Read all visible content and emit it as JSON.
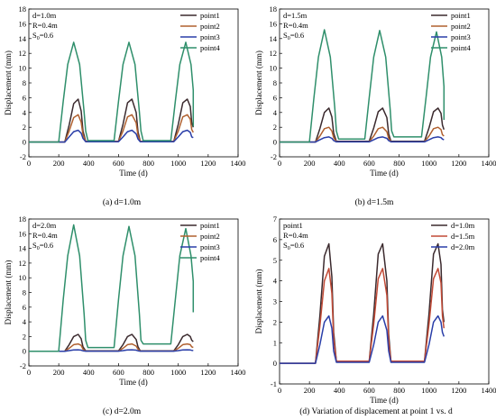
{
  "colors": {
    "point1": "#3b2a2e",
    "point2": "#b0602f",
    "point3": "#2a3ea8",
    "point4": "#2f8f6b",
    "d10": "#3b2a2e",
    "d15": "#c24a36",
    "d20": "#2a3ea8"
  },
  "chart_data": [
    {
      "type": "line",
      "caption": "(a) d=1.0m",
      "xlabel": "Time (d)",
      "ylabel": "Displacement (mm)",
      "xlim": [
        0,
        1400
      ],
      "ylim": [
        -2,
        18
      ],
      "xticks": [
        0,
        200,
        400,
        600,
        800,
        1000,
        1200,
        1400
      ],
      "yticks": [
        -2,
        0,
        2,
        4,
        6,
        8,
        10,
        12,
        14,
        16,
        18
      ],
      "params": [
        "d=1.0m",
        "R=0.4m",
        "S0=0.6"
      ],
      "legend_position": "top-right",
      "series": [
        {
          "name": "point1",
          "x": [
            0,
            240,
            270,
            300,
            330,
            350,
            362,
            380,
            600,
            630,
            660,
            690,
            718,
            730,
            745,
            970,
            1000,
            1030,
            1060,
            1080,
            1090,
            1100
          ],
          "y": [
            0,
            0,
            2.3,
            5.2,
            5.8,
            4.2,
            1.5,
            0.1,
            0.1,
            2.4,
            5.3,
            5.8,
            4.0,
            1.4,
            0.1,
            0.1,
            2.4,
            5.3,
            5.8,
            4.8,
            2.6,
            2.0
          ]
        },
        {
          "name": "point2",
          "x": [
            0,
            240,
            270,
            300,
            330,
            350,
            362,
            380,
            600,
            630,
            660,
            690,
            718,
            730,
            745,
            970,
            1000,
            1030,
            1060,
            1080,
            1090,
            1100
          ],
          "y": [
            0,
            0,
            1.5,
            3.3,
            3.7,
            2.7,
            1.0,
            0.1,
            0.1,
            1.5,
            3.4,
            3.7,
            2.6,
            0.9,
            0.1,
            0.1,
            1.5,
            3.4,
            3.7,
            3.1,
            1.7,
            1.3
          ]
        },
        {
          "name": "point3",
          "x": [
            0,
            240,
            270,
            300,
            330,
            350,
            362,
            380,
            600,
            630,
            660,
            690,
            718,
            730,
            745,
            970,
            1000,
            1030,
            1060,
            1080,
            1090,
            1100
          ],
          "y": [
            0,
            0,
            0.7,
            1.4,
            1.6,
            1.2,
            0.5,
            0.05,
            0.05,
            0.7,
            1.4,
            1.6,
            1.1,
            0.4,
            0.05,
            0.05,
            0.7,
            1.4,
            1.6,
            1.3,
            0.7,
            0.6
          ]
        },
        {
          "name": "point4",
          "x": [
            0,
            200,
            230,
            260,
            300,
            340,
            370,
            380,
            395,
            570,
            600,
            630,
            670,
            710,
            740,
            750,
            765,
            950,
            980,
            1010,
            1050,
            1085,
            1100,
            1100
          ],
          "y": [
            0,
            0,
            5.5,
            10.5,
            13.5,
            10.5,
            4.0,
            1.5,
            0.2,
            0.2,
            5.5,
            10.5,
            13.5,
            10.5,
            4.0,
            1.5,
            0.2,
            0.2,
            5.5,
            10.5,
            13.5,
            10.5,
            7.0,
            2.1
          ]
        }
      ]
    },
    {
      "type": "line",
      "caption": "(b) d=1.5m",
      "xlabel": "Time (d)",
      "ylabel": "Displacement (mm)",
      "xlim": [
        0,
        1400
      ],
      "ylim": [
        -2,
        18
      ],
      "xticks": [
        0,
        200,
        400,
        600,
        800,
        1000,
        1200,
        1400
      ],
      "yticks": [
        -2,
        0,
        2,
        4,
        6,
        8,
        10,
        12,
        14,
        16,
        18
      ],
      "params": [
        "d=1.5m",
        "R=0.4m",
        "S0=0.6"
      ],
      "legend_position": "top-right",
      "series": [
        {
          "name": "point1",
          "x": [
            0,
            240,
            270,
            300,
            330,
            350,
            362,
            380,
            600,
            630,
            660,
            690,
            718,
            730,
            745,
            970,
            1000,
            1030,
            1060,
            1080,
            1090,
            1100
          ],
          "y": [
            0,
            0,
            1.8,
            4.0,
            4.6,
            3.4,
            1.2,
            0.1,
            0.1,
            1.9,
            4.1,
            4.6,
            3.3,
            1.1,
            0.1,
            0.1,
            1.9,
            4.1,
            4.6,
            3.9,
            2.3,
            1.7
          ]
        },
        {
          "name": "point2",
          "x": [
            0,
            240,
            270,
            300,
            330,
            350,
            362,
            380,
            600,
            630,
            660,
            690,
            718,
            730,
            745,
            970,
            1000,
            1030,
            1060,
            1080,
            1090,
            1100
          ],
          "y": [
            0,
            0,
            0.8,
            1.8,
            2.0,
            1.5,
            0.6,
            0.05,
            0.05,
            0.8,
            1.8,
            2.0,
            1.4,
            0.5,
            0.05,
            0.05,
            0.8,
            1.8,
            2.0,
            1.7,
            1.0,
            0.8
          ]
        },
        {
          "name": "point3",
          "x": [
            0,
            240,
            270,
            300,
            330,
            350,
            362,
            380,
            600,
            630,
            660,
            690,
            718,
            730,
            745,
            970,
            1000,
            1030,
            1060,
            1080,
            1090,
            1100
          ],
          "y": [
            0,
            0,
            0.3,
            0.6,
            0.7,
            0.5,
            0.2,
            0.02,
            0.02,
            0.3,
            0.6,
            0.7,
            0.5,
            0.2,
            0.02,
            0.02,
            0.3,
            0.6,
            0.7,
            0.6,
            0.4,
            0.3
          ]
        },
        {
          "name": "point4",
          "x": [
            0,
            200,
            230,
            260,
            300,
            340,
            370,
            380,
            395,
            570,
            600,
            630,
            670,
            710,
            740,
            750,
            765,
            950,
            980,
            1010,
            1050,
            1085,
            1100,
            1100
          ],
          "y": [
            0,
            0,
            6.0,
            11.5,
            15.2,
            11.5,
            4.5,
            1.5,
            0.4,
            0.4,
            6.0,
            11.5,
            15.1,
            11.5,
            4.5,
            1.5,
            0.7,
            0.7,
            6.0,
            11.5,
            14.9,
            11.5,
            7.5,
            3.0
          ]
        }
      ]
    },
    {
      "type": "line",
      "caption": "(c) d=2.0m",
      "xlabel": "Time (d)",
      "ylabel": "Displacement (mm)",
      "xlim": [
        0,
        1400
      ],
      "ylim": [
        -2,
        18
      ],
      "xticks": [
        0,
        200,
        400,
        600,
        800,
        1000,
        1200,
        1400
      ],
      "yticks": [
        -2,
        0,
        2,
        4,
        6,
        8,
        10,
        12,
        14,
        16,
        18
      ],
      "params": [
        "d=2.0m",
        "R=0.4m",
        "S0=0.6"
      ],
      "legend_position": "top-right",
      "series": [
        {
          "name": "point1",
          "x": [
            0,
            240,
            270,
            300,
            330,
            350,
            362,
            380,
            600,
            630,
            660,
            690,
            718,
            730,
            745,
            970,
            1000,
            1030,
            1060,
            1080,
            1090,
            1100
          ],
          "y": [
            0,
            0,
            0.9,
            2.0,
            2.3,
            1.7,
            0.6,
            0.05,
            0.05,
            0.9,
            2.0,
            2.3,
            1.6,
            0.6,
            0.05,
            0.05,
            0.9,
            2.0,
            2.3,
            2.0,
            1.5,
            1.3
          ]
        },
        {
          "name": "point2",
          "x": [
            0,
            240,
            270,
            300,
            330,
            350,
            362,
            380,
            600,
            630,
            660,
            690,
            718,
            730,
            745,
            970,
            1000,
            1030,
            1060,
            1080,
            1090,
            1100
          ],
          "y": [
            0,
            0,
            0.4,
            0.9,
            1.0,
            0.8,
            0.3,
            0.02,
            0.02,
            0.4,
            0.9,
            1.0,
            0.7,
            0.3,
            0.02,
            0.02,
            0.4,
            0.9,
            1.0,
            0.9,
            0.6,
            0.5
          ]
        },
        {
          "name": "point3",
          "x": [
            0,
            240,
            270,
            300,
            330,
            350,
            362,
            380,
            600,
            630,
            660,
            690,
            718,
            730,
            745,
            970,
            1000,
            1030,
            1060,
            1080,
            1090,
            1100
          ],
          "y": [
            0,
            0,
            0.08,
            0.18,
            0.2,
            0.15,
            0.06,
            0.01,
            0.01,
            0.08,
            0.18,
            0.2,
            0.15,
            0.06,
            0.01,
            0.01,
            0.08,
            0.18,
            0.2,
            0.17,
            0.12,
            0.1
          ]
        },
        {
          "name": "point4",
          "x": [
            0,
            200,
            230,
            260,
            300,
            340,
            370,
            380,
            395,
            570,
            600,
            630,
            670,
            710,
            740,
            750,
            765,
            950,
            980,
            1010,
            1050,
            1085,
            1100,
            1100
          ],
          "y": [
            0,
            0,
            7.0,
            13.0,
            17.2,
            13.0,
            5.0,
            1.5,
            0.5,
            0.5,
            7.0,
            13.0,
            17.0,
            13.0,
            5.0,
            1.5,
            1.0,
            1.0,
            7.0,
            13.0,
            16.7,
            13.0,
            9.5,
            5.3
          ]
        }
      ]
    },
    {
      "type": "line",
      "caption": "(d) Variation of displacement at point 1 vs. d",
      "xlabel": "Time (d)",
      "ylabel": "Displacement (mm)",
      "xlim": [
        0,
        1400
      ],
      "ylim": [
        -1,
        7
      ],
      "xticks": [
        0,
        200,
        400,
        600,
        800,
        1000,
        1200,
        1400
      ],
      "yticks": [
        -1,
        0,
        1,
        2,
        3,
        4,
        5,
        6,
        7
      ],
      "params": [
        "point1",
        "R=0.4m",
        "S0=0.6"
      ],
      "legend_position": "top-right",
      "series": [
        {
          "name": "d=1.0m",
          "x": [
            0,
            240,
            270,
            300,
            330,
            350,
            362,
            380,
            600,
            630,
            660,
            690,
            718,
            730,
            745,
            970,
            1000,
            1030,
            1060,
            1080,
            1090,
            1100
          ],
          "y": [
            0,
            0,
            2.3,
            5.2,
            5.8,
            4.2,
            1.5,
            0.1,
            0.1,
            2.4,
            5.3,
            5.8,
            4.0,
            1.4,
            0.1,
            0.1,
            2.4,
            5.3,
            5.8,
            4.8,
            2.6,
            2.0
          ]
        },
        {
          "name": "d=1.5m",
          "x": [
            0,
            240,
            270,
            300,
            330,
            350,
            362,
            380,
            600,
            630,
            660,
            690,
            718,
            730,
            745,
            970,
            1000,
            1030,
            1060,
            1080,
            1090,
            1100
          ],
          "y": [
            0,
            0,
            1.8,
            4.0,
            4.6,
            3.4,
            1.2,
            0.1,
            0.1,
            1.9,
            4.1,
            4.6,
            3.3,
            1.1,
            0.1,
            0.1,
            1.9,
            4.1,
            4.6,
            3.9,
            2.3,
            1.7
          ]
        },
        {
          "name": "d=2.0m",
          "x": [
            0,
            240,
            270,
            300,
            330,
            350,
            362,
            380,
            600,
            630,
            660,
            690,
            718,
            730,
            745,
            970,
            1000,
            1030,
            1060,
            1080,
            1090,
            1100
          ],
          "y": [
            0,
            0,
            0.9,
            2.0,
            2.3,
            1.7,
            0.6,
            0.05,
            0.05,
            0.9,
            2.0,
            2.3,
            1.6,
            0.6,
            0.05,
            0.05,
            0.9,
            2.0,
            2.3,
            2.0,
            1.5,
            1.3
          ]
        }
      ]
    }
  ]
}
